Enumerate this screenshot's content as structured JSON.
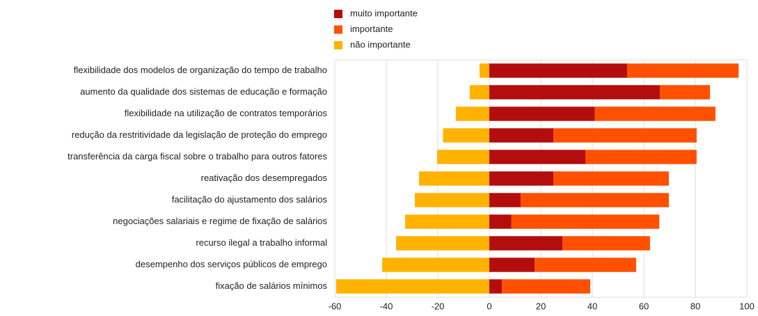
{
  "chart_data": {
    "type": "bar",
    "orientation": "horizontal",
    "stacked": true,
    "categories": [
      "flexibilidade dos modelos de organização do tempo de trabalho",
      "aumento da qualidade dos sistemas de educação e formação",
      "flexibilidade na utilização de contratos temporários",
      "redução da restritividade da legislação de proteção do emprego",
      "transferência da carga fiscal sobre o trabalho para outros fatores",
      "reativação dos desempregados",
      "facilitação do ajustamento dos salários",
      "negociações salariais e regime de fixação de salários",
      "recurso ilegal a trabalho informal",
      "desempenho dos serviços públicos de emprego",
      "fixação de salários mínimos"
    ],
    "series": [
      {
        "name": "muito importante",
        "color": "#b30d0d",
        "values": [
          53.5,
          66.2,
          41,
          24.9,
          37.3,
          24.9,
          12.2,
          8.6,
          28.4,
          17.6,
          4.9
        ]
      },
      {
        "name": "importante",
        "color": "#ff5000",
        "values": [
          43.3,
          19.5,
          46.8,
          55.6,
          43.2,
          44.8,
          57.5,
          57.4,
          34,
          39.4,
          34.3
        ]
      },
      {
        "name": "não importante",
        "color": "#ffb300",
        "values": [
          -3.8,
          -7.6,
          -13,
          -18,
          -20.3,
          -27.3,
          -28.9,
          -32.7,
          -36.2,
          -41.6,
          -59.5
        ]
      }
    ],
    "xlim": [
      -60,
      100
    ],
    "xticks": [
      -60,
      -40,
      -20,
      0,
      20,
      40,
      60,
      80,
      100
    ],
    "grid": true,
    "legend": "top"
  }
}
